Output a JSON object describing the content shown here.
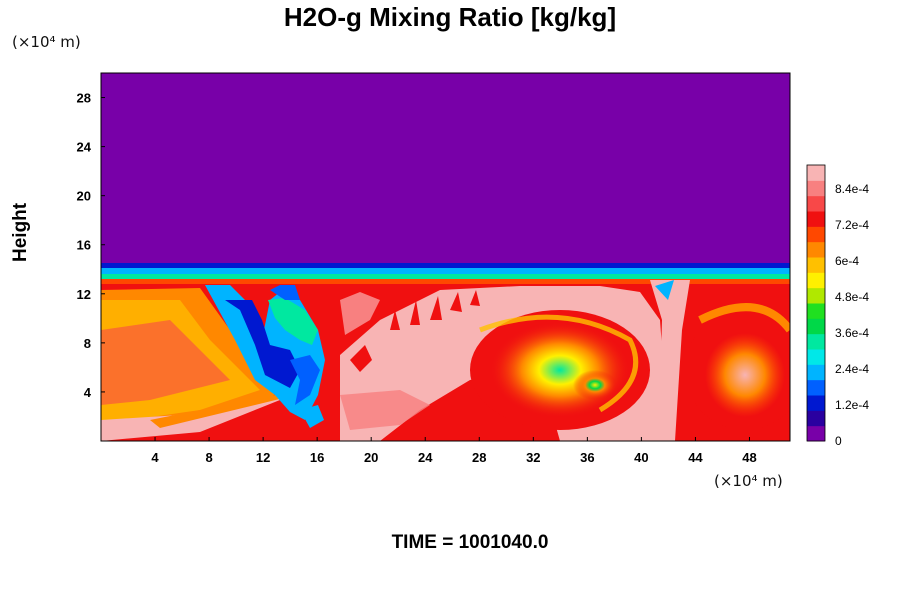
{
  "chart_data": {
    "type": "heatmap",
    "title": "H2O-g Mixing Ratio [kg/kg]",
    "ylabel": "Height",
    "x_unit": "(×10⁴ m)",
    "y_unit": "(×10⁴ m)",
    "x_range": [
      0,
      51
    ],
    "y_range": [
      0,
      30
    ],
    "x_ticks": [
      4,
      8,
      12,
      16,
      20,
      24,
      28,
      32,
      36,
      40,
      44,
      48
    ],
    "y_ticks": [
      4,
      8,
      12,
      16,
      20,
      24,
      28
    ],
    "x_tick_labels": [
      "4",
      "8",
      "12",
      "16",
      "20",
      "24",
      "28",
      "32",
      "36",
      "40",
      "44",
      "48"
    ],
    "y_tick_labels": [
      "4",
      "8",
      "12",
      "16",
      "20",
      "24",
      "28"
    ],
    "colorbar": {
      "range": [
        0,
        0.00092
      ],
      "tick_values": [
        0,
        0.00012,
        0.00024,
        0.00036,
        0.00048,
        0.0006,
        0.00072,
        0.00084
      ],
      "tick_labels": [
        "0",
        "1.2e-4",
        "2.4e-4",
        "3.6e-4",
        "4.8e-4",
        "6e-4",
        "7.2e-4",
        "8.4e-4"
      ],
      "colors": [
        "#7800a8",
        "#2a00a0",
        "#0018d0",
        "#0060ff",
        "#00b4ff",
        "#00e8e8",
        "#00e8a0",
        "#00d848",
        "#20e020",
        "#b0e800",
        "#fff000",
        "#ffc000",
        "#ff8800",
        "#ff4800",
        "#f01010",
        "#f84848",
        "#f88080",
        "#f8b4b4"
      ]
    },
    "background_value": 0,
    "moist_layer_top": 13,
    "notable_features": {
      "dry_intrusion_x_range": [
        12,
        17
      ],
      "max_value_region_x_range": [
        22,
        42
      ]
    },
    "time_label": "TIME = 1001040.0"
  }
}
